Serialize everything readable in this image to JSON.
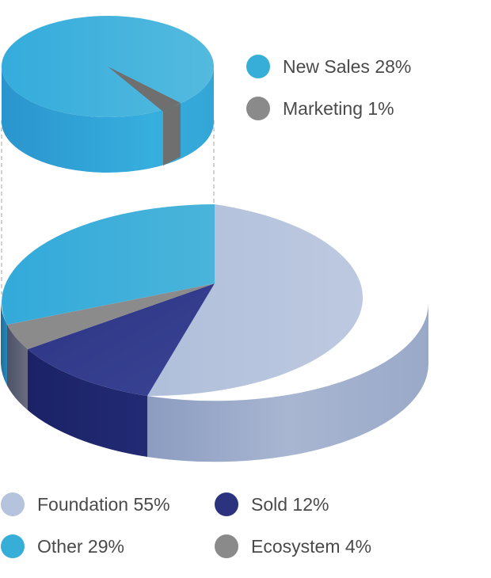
{
  "chart_data": [
    {
      "type": "pie",
      "style": "3d-exploded",
      "slices": [
        {
          "label": "Foundation",
          "value": 55,
          "percent_label": "55%",
          "color": "#b5c3dc"
        },
        {
          "label": "Sold",
          "value": 12,
          "percent_label": "12%",
          "color": "#2b337f"
        },
        {
          "label": "Ecosystem",
          "value": 4,
          "percent_label": "4%",
          "color": "#8a8a8a"
        },
        {
          "label": "Other",
          "value": 29,
          "percent_label": "29%",
          "color": "#36aed8"
        }
      ],
      "legend": "bottom"
    },
    {
      "type": "pie",
      "style": "3d-breakout",
      "breakout_of": "Other",
      "slices": [
        {
          "label": "New Sales",
          "value": 28,
          "percent_label": "28%",
          "color": "#36aed8"
        },
        {
          "label": "Marketing",
          "value": 1,
          "percent_label": "1%",
          "color": "#8a8a8a"
        }
      ],
      "legend": "right"
    }
  ],
  "legend_main": [
    {
      "text": "Foundation 55%",
      "color": "#b5c3dc"
    },
    {
      "text": "Sold 12%",
      "color": "#2b337f"
    },
    {
      "text": "Other 29%",
      "color": "#36aed8"
    },
    {
      "text": "Ecosystem 4%",
      "color": "#8a8a8a"
    }
  ],
  "legend_breakout": [
    {
      "text": "New Sales 28%",
      "color": "#36aed8"
    },
    {
      "text": "Marketing 1%",
      "color": "#8a8a8a"
    }
  ]
}
